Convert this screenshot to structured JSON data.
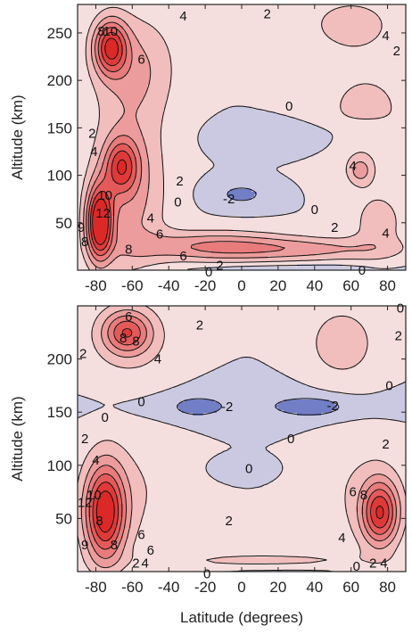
{
  "colors": {
    "positive": "#dc1e1e",
    "negative": "#3c50b4",
    "neutral": "#f7efef",
    "contour_line": "#111111",
    "axis": "#222222"
  },
  "chart_data": [
    {
      "type": "heatmap",
      "xlabel": "",
      "ylabel": "Altitude (km)",
      "xlim": [
        -90,
        90
      ],
      "ylim": [
        0,
        280
      ],
      "x_ticks": [
        "-80",
        "-60",
        "-40",
        "-20",
        "0",
        "20",
        "40",
        "60",
        "80"
      ],
      "y_ticks": [
        "50",
        "100",
        "150",
        "200",
        "250"
      ],
      "contour_levels": [
        -2,
        0,
        2,
        4,
        6,
        8,
        10,
        12
      ],
      "features": [
        {
          "lat": -72,
          "alt": 235,
          "value": 11,
          "dlat": 9,
          "dalt": 28
        },
        {
          "lat": -58,
          "alt": 215,
          "value": 4,
          "dlat": 22,
          "dalt": 55
        },
        {
          "lat": -78,
          "alt": 50,
          "value": 14,
          "dlat": 7,
          "dalt": 38
        },
        {
          "lat": -66,
          "alt": 110,
          "value": 8,
          "dlat": 9,
          "dalt": 28
        },
        {
          "lat": -62,
          "alt": 85,
          "value": 5,
          "dlat": 20,
          "dalt": 90
        },
        {
          "lat": -15,
          "alt": 25,
          "value": 6,
          "dlat": 42,
          "dalt": 16
        },
        {
          "lat": 40,
          "alt": 22,
          "value": 4,
          "dlat": 45,
          "dalt": 12
        },
        {
          "lat": 75,
          "alt": 50,
          "value": 3,
          "dlat": 15,
          "dalt": 35
        },
        {
          "lat": 65,
          "alt": 105,
          "value": 4.5,
          "dlat": 7,
          "dalt": 15
        },
        {
          "lat": 68,
          "alt": 170,
          "value": 2.5,
          "dlat": 30,
          "dalt": 55
        },
        {
          "lat": 60,
          "alt": 260,
          "value": 3,
          "dlat": 24,
          "dalt": 28
        },
        {
          "lat": 25,
          "alt": 140,
          "value": -2.2,
          "dlat": 30,
          "dalt": 16
        },
        {
          "lat": 0,
          "alt": 80,
          "value": -2.5,
          "dlat": 17,
          "dalt": 14
        },
        {
          "lat": 70,
          "alt": 148,
          "value": -1.2,
          "dlat": 18,
          "dalt": 10
        },
        {
          "lat": 20,
          "alt": 2,
          "value": -1.5,
          "dlat": 60,
          "dalt": 5
        }
      ],
      "labels": [
        {
          "text": "8",
          "lat": -77,
          "alt": 252
        },
        {
          "text": "10",
          "lat": -72,
          "alt": 252
        },
        {
          "text": "4",
          "lat": -32,
          "alt": 268
        },
        {
          "text": "2",
          "lat": 14,
          "alt": 270
        },
        {
          "text": "6",
          "lat": -55,
          "alt": 222
        },
        {
          "text": "4",
          "lat": 79,
          "alt": 247
        },
        {
          "text": "2",
          "lat": 85,
          "alt": 231
        },
        {
          "text": "0",
          "lat": 26,
          "alt": 173
        },
        {
          "text": "2",
          "lat": -82,
          "alt": 144
        },
        {
          "text": "4",
          "lat": -81,
          "alt": 125
        },
        {
          "text": "2",
          "lat": -34,
          "alt": 94
        },
        {
          "text": "0",
          "lat": -35,
          "alt": 72
        },
        {
          "text": "-2",
          "lat": -7,
          "alt": 75
        },
        {
          "text": "0",
          "lat": 40,
          "alt": 64
        },
        {
          "text": "4",
          "lat": 61,
          "alt": 110
        },
        {
          "text": "2",
          "lat": 51,
          "alt": 45
        },
        {
          "text": "4",
          "lat": 79,
          "alt": 39
        },
        {
          "text": "10",
          "lat": -75,
          "alt": 79
        },
        {
          "text": "12",
          "lat": -76,
          "alt": 60
        },
        {
          "text": "9",
          "lat": -88,
          "alt": 45
        },
        {
          "text": "8",
          "lat": -86,
          "alt": 30
        },
        {
          "text": "4",
          "lat": -50,
          "alt": 55
        },
        {
          "text": "6",
          "lat": -45,
          "alt": 38
        },
        {
          "text": "8",
          "lat": -62,
          "alt": 22
        },
        {
          "text": "6",
          "lat": -32,
          "alt": 15
        },
        {
          "text": "2",
          "lat": -12,
          "alt": 5
        },
        {
          "text": "0",
          "lat": -18,
          "alt": -2
        },
        {
          "text": "0",
          "lat": 66,
          "alt": 0
        }
      ]
    },
    {
      "type": "heatmap",
      "xlabel": "Latitude (degrees)",
      "ylabel": "Altitude (km)",
      "xlim": [
        -90,
        90
      ],
      "ylim": [
        0,
        250
      ],
      "x_ticks": [
        "-80",
        "-60",
        "-40",
        "-20",
        "0",
        "20",
        "40",
        "60",
        "80"
      ],
      "y_ticks": [
        "50",
        "100",
        "150",
        "200"
      ],
      "contour_levels": [
        -2,
        0,
        2,
        4,
        6,
        8,
        10,
        12
      ],
      "features": [
        {
          "lat": -63,
          "alt": 225,
          "value": 8.5,
          "dlat": 13,
          "dalt": 20
        },
        {
          "lat": -60,
          "alt": 215,
          "value": 2,
          "dlat": 28,
          "dalt": 45
        },
        {
          "lat": -75,
          "alt": 55,
          "value": 13,
          "dlat": 11,
          "dalt": 45
        },
        {
          "lat": -60,
          "alt": 75,
          "value": 2,
          "dlat": 28,
          "dalt": 55
        },
        {
          "lat": 76,
          "alt": 55,
          "value": 11,
          "dlat": 10,
          "dalt": 30
        },
        {
          "lat": 65,
          "alt": 75,
          "value": 2,
          "dlat": 26,
          "dalt": 55
        },
        {
          "lat": 55,
          "alt": 215,
          "value": 3,
          "dlat": 22,
          "dalt": 40
        },
        {
          "lat": -25,
          "alt": 155,
          "value": -2.5,
          "dlat": 12,
          "dalt": 8
        },
        {
          "lat": 40,
          "alt": 155,
          "value": -2.6,
          "dlat": 18,
          "dalt": 9
        },
        {
          "lat": 10,
          "alt": 160,
          "value": -0.8,
          "dlat": 70,
          "dalt": 22
        },
        {
          "lat": 0,
          "alt": 97,
          "value": -1.5,
          "dlat": 14,
          "dalt": 9
        },
        {
          "lat": 10,
          "alt": 10,
          "value": 2.5,
          "dlat": 60,
          "dalt": 10
        },
        {
          "lat": 20,
          "alt": 1,
          "value": -1.2,
          "dlat": 55,
          "dalt": 5
        },
        {
          "lat": 0,
          "alt": 155,
          "value": -0.7,
          "dlat": 90,
          "dalt": 15
        }
      ],
      "labels": [
        {
          "text": "6",
          "lat": -62,
          "alt": 240
        },
        {
          "text": "8",
          "lat": -65,
          "alt": 220
        },
        {
          "text": "8",
          "lat": -58,
          "alt": 217
        },
        {
          "text": "2",
          "lat": -87,
          "alt": 205
        },
        {
          "text": "4",
          "lat": -46,
          "alt": 200
        },
        {
          "text": "2",
          "lat": -23,
          "alt": 232
        },
        {
          "text": "2",
          "lat": 86,
          "alt": 222
        },
        {
          "text": "0",
          "lat": 87,
          "alt": 248
        },
        {
          "text": "0",
          "lat": 81,
          "alt": 175
        },
        {
          "text": "0",
          "lat": -55,
          "alt": 160
        },
        {
          "text": "0",
          "lat": -75,
          "alt": 145
        },
        {
          "text": "-2",
          "lat": -8,
          "alt": 155
        },
        {
          "text": "-2",
          "lat": 50,
          "alt": 156
        },
        {
          "text": "0",
          "lat": 27,
          "alt": 125
        },
        {
          "text": "0",
          "lat": 4,
          "alt": 97
        },
        {
          "text": "2",
          "lat": 79,
          "alt": 120
        },
        {
          "text": "2",
          "lat": -86,
          "alt": 125
        },
        {
          "text": "4",
          "lat": -80,
          "alt": 105
        },
        {
          "text": "10",
          "lat": -81,
          "alt": 72
        },
        {
          "text": "12",
          "lat": -86,
          "alt": 65
        },
        {
          "text": "8",
          "lat": -78,
          "alt": 48
        },
        {
          "text": "9",
          "lat": -86,
          "alt": 25
        },
        {
          "text": "8",
          "lat": -70,
          "alt": 25
        },
        {
          "text": "6",
          "lat": -55,
          "alt": 35
        },
        {
          "text": "6",
          "lat": -50,
          "alt": 20
        },
        {
          "text": "2",
          "lat": -58,
          "alt": 8
        },
        {
          "text": "4",
          "lat": -53,
          "alt": 8
        },
        {
          "text": "2",
          "lat": -7,
          "alt": 48
        },
        {
          "text": "6",
          "lat": 61,
          "alt": 75
        },
        {
          "text": "8",
          "lat": 67,
          "alt": 72
        },
        {
          "text": "4",
          "lat": 55,
          "alt": 32
        },
        {
          "text": "0",
          "lat": 63,
          "alt": 5
        },
        {
          "text": "2",
          "lat": 72,
          "alt": 8
        },
        {
          "text": "4",
          "lat": 78,
          "alt": 8
        },
        {
          "text": "0",
          "lat": -19,
          "alt": -2
        }
      ]
    }
  ]
}
